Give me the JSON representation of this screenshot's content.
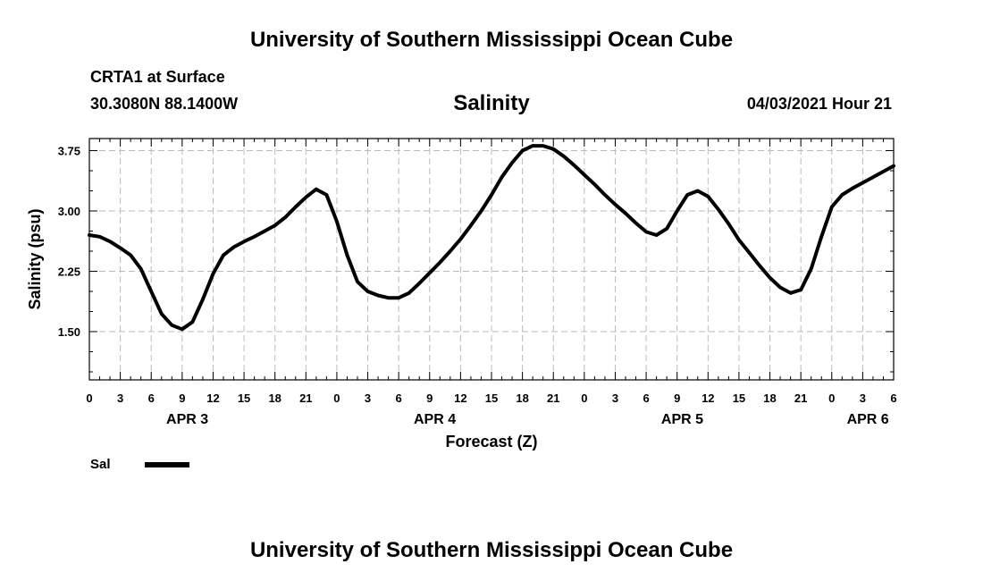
{
  "header": {
    "title": "University of Southern Mississippi Ocean Cube",
    "station": "CRTA1 at Surface",
    "coords": "30.3080N  88.1400W",
    "variable": "Salinity",
    "datetime": "04/03/2021 Hour 21"
  },
  "footer": {
    "title": "University of Southern Mississippi Ocean Cube"
  },
  "legend": {
    "label": "Sal"
  },
  "chart_data": {
    "type": "line",
    "title": "Salinity",
    "xlabel": "Forecast (Z)",
    "ylabel": "Salinity (psu)",
    "xlim": [
      0,
      78
    ],
    "ylim": [
      0.9,
      3.9
    ],
    "grid": true,
    "x_tick_labels": [
      "0",
      "3",
      "6",
      "9",
      "12",
      "15",
      "18",
      "21",
      "0",
      "3",
      "6",
      "9",
      "12",
      "15",
      "18",
      "21",
      "0",
      "3",
      "6",
      "9",
      "12",
      "15",
      "18",
      "21",
      "0",
      "3",
      "6"
    ],
    "y_ticks": [
      1.5,
      2.25,
      3.0,
      3.75
    ],
    "y_tick_labels": [
      "1.50",
      "2.25",
      "3.00",
      "3.75"
    ],
    "date_labels": [
      {
        "label": "APR 3",
        "hour": 9.5
      },
      {
        "label": "APR 4",
        "hour": 33.5
      },
      {
        "label": "APR 5",
        "hour": 57.5
      },
      {
        "label": "APR 6",
        "hour": 75.5
      }
    ],
    "series": [
      {
        "name": "Sal",
        "color": "#000000",
        "x": [
          0,
          1,
          2,
          3,
          4,
          5,
          6,
          7,
          8,
          9,
          10,
          11,
          12,
          13,
          14,
          15,
          16,
          17,
          18,
          19,
          20,
          21,
          22,
          23,
          24,
          25,
          26,
          27,
          28,
          29,
          30,
          31,
          32,
          33,
          34,
          35,
          36,
          37,
          38,
          39,
          40,
          41,
          42,
          43,
          44,
          45,
          46,
          47,
          48,
          49,
          50,
          51,
          52,
          53,
          54,
          55,
          56,
          57,
          58,
          59,
          60,
          61,
          62,
          63,
          64,
          65,
          66,
          67,
          68,
          69,
          70,
          71,
          72,
          73,
          74,
          75,
          76,
          77,
          78
        ],
        "values": [
          2.7,
          2.68,
          2.62,
          2.54,
          2.45,
          2.28,
          2.0,
          1.72,
          1.58,
          1.53,
          1.62,
          1.9,
          2.22,
          2.45,
          2.55,
          2.62,
          2.68,
          2.75,
          2.82,
          2.92,
          3.05,
          3.17,
          3.27,
          3.2,
          2.87,
          2.45,
          2.12,
          2.0,
          1.95,
          1.92,
          1.92,
          1.98,
          2.1,
          2.23,
          2.36,
          2.5,
          2.65,
          2.82,
          3.0,
          3.2,
          3.42,
          3.6,
          3.75,
          3.81,
          3.81,
          3.77,
          3.68,
          3.57,
          3.45,
          3.33,
          3.2,
          3.08,
          2.97,
          2.85,
          2.74,
          2.7,
          2.78,
          3.0,
          3.2,
          3.25,
          3.18,
          3.02,
          2.84,
          2.64,
          2.48,
          2.32,
          2.17,
          2.05,
          1.98,
          2.02,
          2.28,
          2.68,
          3.05,
          3.2,
          3.28,
          3.35,
          3.42,
          3.49,
          3.56
        ]
      }
    ]
  }
}
